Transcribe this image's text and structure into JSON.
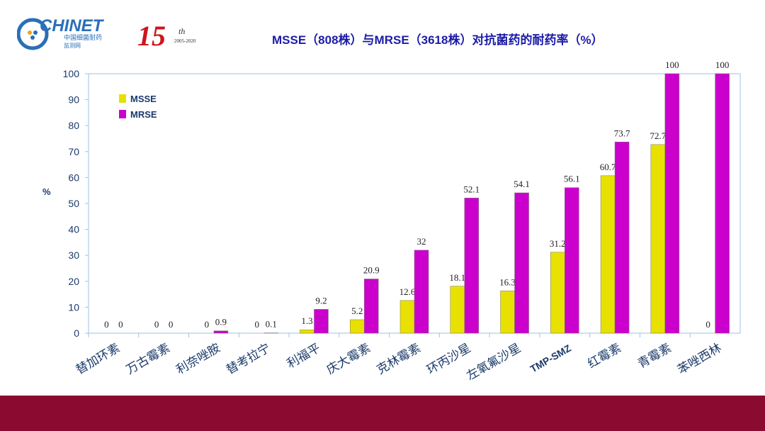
{
  "logo": {
    "text": "CHINET",
    "sub1": "中国细菌耐药",
    "sub2": "监测网",
    "anniv": "15",
    "anniv_sup": "th",
    "years": "2005-2020"
  },
  "title": "MSSE（808株）与MRSE（3618株）对抗菌药的耐药率（%）",
  "chart_data": {
    "type": "bar",
    "title": "MSSE（808株）与MRSE（3618株）对抗菌药的耐药率（%）",
    "ylabel": "%",
    "xlabel": "",
    "ylim": [
      0,
      100
    ],
    "yticks": [
      0,
      10,
      20,
      30,
      40,
      50,
      60,
      70,
      80,
      90,
      100
    ],
    "categories": [
      "替加环素",
      "万古霉素",
      "利奈唑胺",
      "替考拉宁",
      "利福平",
      "庆大霉素",
      "克林霉素",
      "环丙沙星",
      "左氧氟沙星",
      "TMP-SMZ",
      "红霉素",
      "青霉素",
      "苯唑西林"
    ],
    "series": [
      {
        "name": "MSSE",
        "color": "#e8e000",
        "values": [
          0,
          0,
          0,
          0,
          1.3,
          5.2,
          12.6,
          18.1,
          16.3,
          31.2,
          60.7,
          72.7,
          0
        ]
      },
      {
        "name": "MRSE",
        "color": "#cc00cc",
        "values": [
          0,
          0,
          0.9,
          0.1,
          9.2,
          20.9,
          32,
          52.1,
          54.1,
          56.1,
          73.7,
          100,
          100
        ]
      }
    ],
    "grid": false,
    "legend": "top-left",
    "data_labels_shown": [
      [
        true,
        true,
        true,
        true,
        true,
        true,
        true,
        true,
        true,
        true,
        true,
        true,
        true
      ],
      [
        true,
        true,
        true,
        true,
        true,
        true,
        true,
        true,
        true,
        true,
        true,
        true,
        true
      ]
    ]
  },
  "colors": {
    "band": "#8a0b2f",
    "title": "#1c1ca8",
    "axis": "#9cc3e6"
  }
}
